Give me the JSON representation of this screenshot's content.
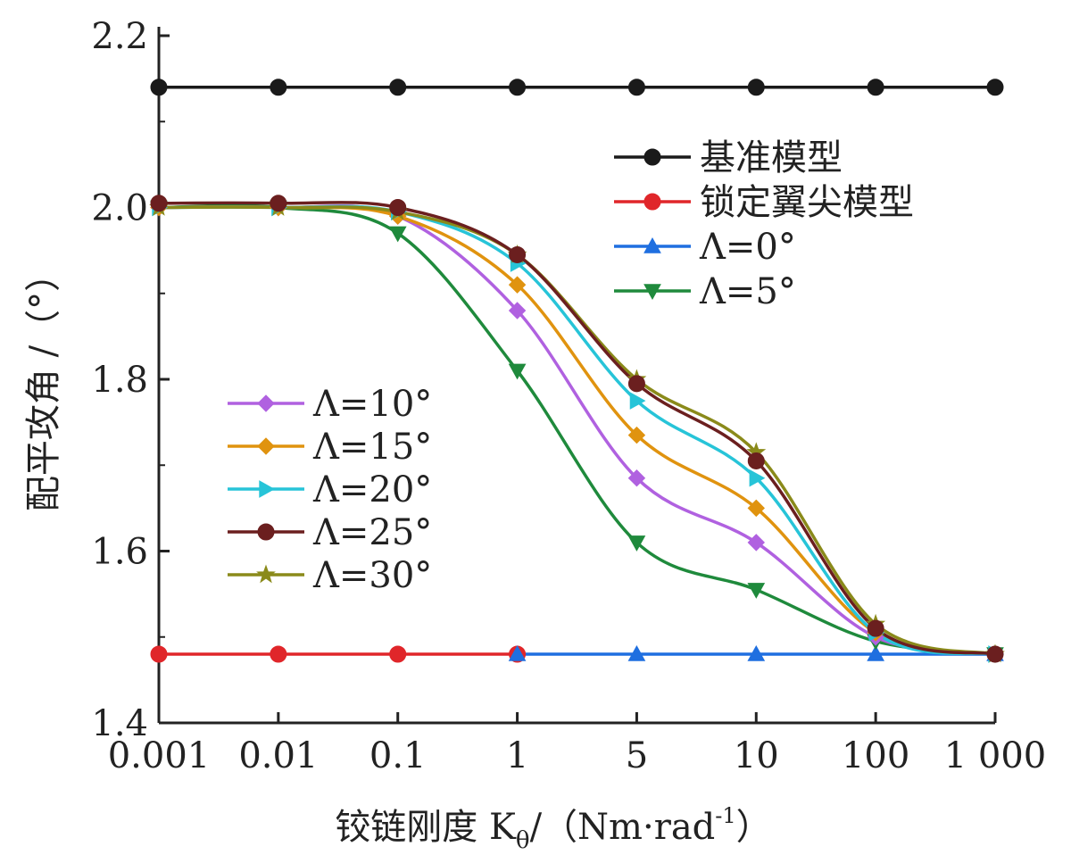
{
  "chart_data": {
    "type": "line",
    "xlabel": "铰链刚度 K",
    "xlabel_sub": "θ",
    "xlabel_unit": "/（Nm·rad",
    "xlabel_exp": "-1",
    "xlabel_close": "）",
    "ylabel": "配平攻角 /（°）",
    "x": [
      "0.001",
      "0.01",
      "0.1",
      "1",
      "5",
      "10",
      "100",
      "1 000"
    ],
    "ylim": [
      1.4,
      2.2
    ],
    "yticks": [
      "1.4",
      "1.6",
      "1.8",
      "2.0",
      "2.2"
    ],
    "grid": false,
    "series": [
      {
        "name": "基准模型",
        "color": "#1a1a1a",
        "marker": "circle",
        "values": [
          2.14,
          2.14,
          2.14,
          2.14,
          2.14,
          2.14,
          2.14,
          2.14
        ]
      },
      {
        "name": "锁定翼尖模型",
        "color": "#e0262a",
        "marker": "circle",
        "values": [
          1.48,
          1.48,
          1.48,
          1.48,
          null,
          null,
          null,
          null
        ]
      },
      {
        "name": "Λ=0°",
        "color": "#1f6fe0",
        "marker": "triangle-up",
        "values": [
          null,
          null,
          null,
          1.48,
          1.48,
          1.48,
          1.48,
          1.48
        ]
      },
      {
        "name": "Λ=5°",
        "color": "#1f8a3c",
        "marker": "triangle-down",
        "values": [
          2.0,
          2.0,
          1.97,
          1.81,
          1.61,
          1.555,
          1.495,
          1.48
        ]
      },
      {
        "name": "Λ=10°",
        "color": "#b061e0",
        "marker": "diamond",
        "values": [
          2.0,
          2.0,
          1.99,
          1.88,
          1.685,
          1.61,
          1.5,
          1.48
        ]
      },
      {
        "name": "Λ=15°",
        "color": "#e0930f",
        "marker": "diamond",
        "values": [
          2.0,
          2.0,
          1.99,
          1.91,
          1.735,
          1.65,
          1.505,
          1.48
        ]
      },
      {
        "name": "Λ=20°",
        "color": "#27c4d8",
        "marker": "triangle-right",
        "values": [
          2.0,
          2.0,
          1.995,
          1.935,
          1.775,
          1.685,
          1.505,
          1.48
        ]
      },
      {
        "name": "Λ=25°",
        "color": "#6b1f1f",
        "marker": "circle",
        "values": [
          2.005,
          2.005,
          2.0,
          1.945,
          1.795,
          1.705,
          1.51,
          1.48
        ]
      },
      {
        "name": "Λ=30°",
        "color": "#8a8a1a",
        "marker": "star",
        "values": [
          2.0,
          2.0,
          1.995,
          1.945,
          1.8,
          1.715,
          1.515,
          1.48
        ]
      }
    ]
  }
}
